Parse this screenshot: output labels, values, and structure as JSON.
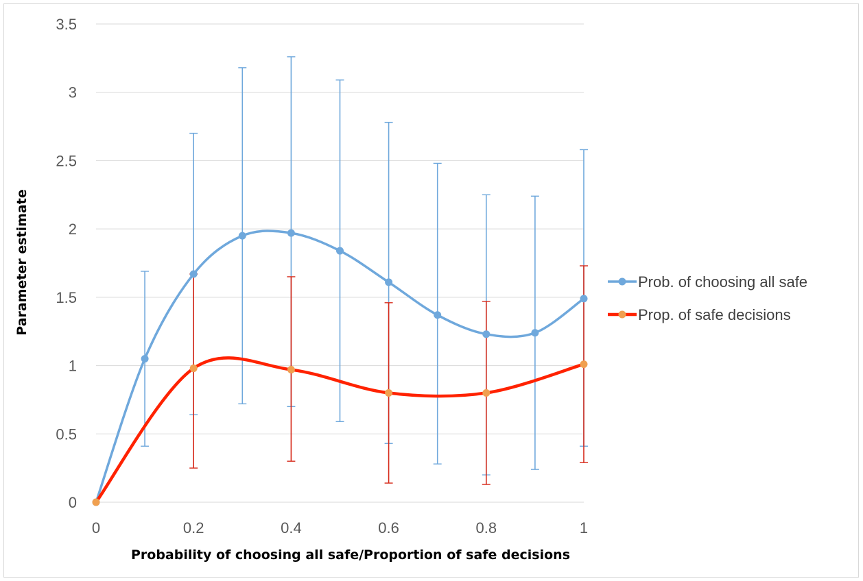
{
  "chart_data": {
    "type": "line",
    "xlabel": "Probability of choosing all safe/Proportion of safe decisions",
    "ylabel": "Parameter estimate",
    "xlim": [
      0,
      1
    ],
    "ylim": [
      0,
      3.5
    ],
    "x_ticks": [
      0,
      0.2,
      0.4,
      0.6,
      0.8,
      1
    ],
    "x_tick_labels": [
      "0",
      "0.2",
      "0.4",
      "0.6",
      "0.8",
      "1"
    ],
    "y_ticks": [
      0,
      0.5,
      1,
      1.5,
      2,
      2.5,
      3,
      3.5
    ],
    "y_tick_labels": [
      "0",
      "0.5",
      "1",
      "1.5",
      "2",
      "2.5",
      "3",
      "3.5"
    ],
    "grid": "horizontal",
    "legend_position": "right",
    "smooth": true,
    "series": [
      {
        "name": "Prob. of choosing all safe",
        "color": "#6fa8dc",
        "x": [
          0,
          0.1,
          0.2,
          0.3,
          0.4,
          0.5,
          0.6,
          0.7,
          0.8,
          0.9,
          1
        ],
        "values": [
          0,
          1.05,
          1.67,
          1.95,
          1.97,
          1.84,
          1.61,
          1.37,
          1.23,
          1.24,
          1.49
        ],
        "error_lower": [
          0,
          0.41,
          0.64,
          0.72,
          0.7,
          0.59,
          0.43,
          0.28,
          0.2,
          0.24,
          0.41
        ],
        "error_upper": [
          0,
          1.69,
          2.7,
          3.18,
          3.26,
          3.09,
          2.78,
          2.48,
          2.25,
          2.24,
          2.58
        ],
        "error_color": "#6fa8dc"
      },
      {
        "name": "Prop. of safe decisions",
        "color": "#ff2200",
        "marker_color": "#f0a050",
        "x": [
          0,
          0.2,
          0.4,
          0.6,
          0.8,
          1
        ],
        "values": [
          0,
          0.98,
          0.97,
          0.8,
          0.8,
          1.01
        ],
        "error_lower": [
          0,
          0.25,
          0.3,
          0.14,
          0.13,
          0.29
        ],
        "error_upper": [
          0,
          1.67,
          1.65,
          1.46,
          1.47,
          1.73
        ],
        "error_color": "#d62a1a"
      }
    ]
  }
}
